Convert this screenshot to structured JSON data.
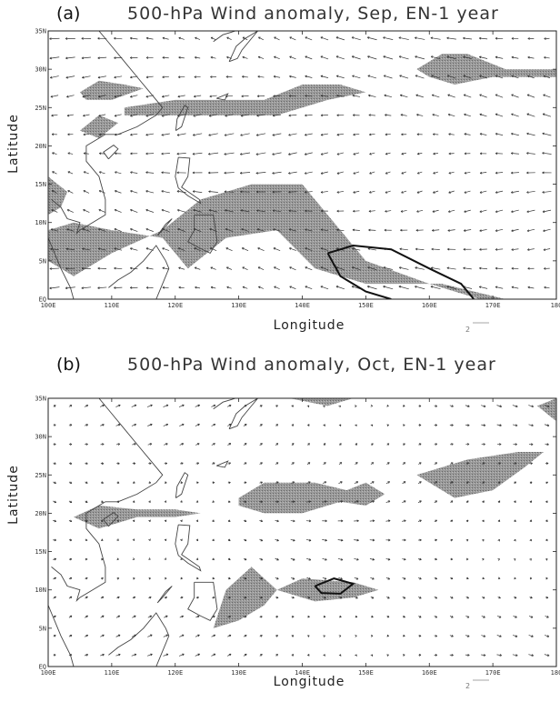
{
  "figure": {
    "panels": [
      {
        "letter": "(a)",
        "title": "500-hPa Wind anomaly, Sep, EN-1 year",
        "xlabel": "Longitude",
        "ylabel": "Latitude",
        "ref_vector_label": "2",
        "lon_ticks": [
          "100E",
          "110E",
          "120E",
          "130E",
          "140E",
          "150E",
          "160E",
          "170E",
          "180"
        ],
        "lat_ticks": [
          "EQ",
          "5N",
          "10N",
          "15N",
          "20N",
          "25N",
          "30N",
          "35N"
        ],
        "wind": {
          "u_base": -1.6,
          "v_base": 0.1,
          "u_amp": 0.6,
          "v_amp": 0.5,
          "phase": 0.0
        },
        "shaded_regions": [
          [
            [
              100,
              5
            ],
            [
              104,
              3
            ],
            [
              110,
              6
            ],
            [
              118,
              9
            ],
            [
              124,
              13
            ],
            [
              132,
              15
            ],
            [
              140,
              15
            ],
            [
              145,
              10
            ],
            [
              150,
              5
            ],
            [
              160,
              2
            ],
            [
              168,
              0
            ],
            [
              172,
              0
            ],
            [
              162,
              2
            ],
            [
              150,
              2
            ],
            [
              142,
              4
            ],
            [
              136,
              9
            ],
            [
              128,
              8
            ],
            [
              122,
              4
            ],
            [
              118,
              8
            ],
            [
              110,
              9
            ],
            [
              104,
              10
            ],
            [
              100,
              9
            ]
          ],
          [
            [
              100,
              11
            ],
            [
              102,
              12
            ],
            [
              103,
              14
            ],
            [
              100,
              16
            ]
          ],
          [
            [
              105,
              27
            ],
            [
              108,
              28.5
            ],
            [
              112,
              28
            ],
            [
              115,
              27.5
            ],
            [
              110,
              26
            ],
            [
              106,
              26
            ]
          ],
          [
            [
              112,
              25
            ],
            [
              120,
              26
            ],
            [
              128,
              26
            ],
            [
              134,
              26
            ],
            [
              140,
              28
            ],
            [
              146,
              28
            ],
            [
              150,
              27
            ],
            [
              144,
              26
            ],
            [
              136,
              24
            ],
            [
              126,
              24
            ],
            [
              118,
              24
            ],
            [
              112,
              24
            ]
          ],
          [
            [
              105,
              22
            ],
            [
              108,
              24
            ],
            [
              111,
              23
            ],
            [
              108,
              21
            ]
          ],
          [
            [
              158,
              30
            ],
            [
              162,
              32
            ],
            [
              166,
              32
            ],
            [
              172,
              30
            ],
            [
              180,
              30
            ],
            [
              180,
              29
            ],
            [
              170,
              29
            ],
            [
              164,
              28
            ],
            [
              160,
              29
            ]
          ]
        ],
        "contours": [
          [
            [
              144,
              6
            ],
            [
              148,
              7
            ],
            [
              154,
              6.5
            ],
            [
              160,
              4
            ],
            [
              165,
              2
            ],
            [
              167,
              0
            ]
          ],
          [
            [
              144,
              6
            ],
            [
              146,
              3
            ],
            [
              150,
              1
            ],
            [
              154,
              0
            ]
          ]
        ]
      },
      {
        "letter": "(b)",
        "title": "500-hPa Wind anomaly, Oct, EN-1 year",
        "xlabel": "Longitude",
        "ylabel": "Latitude",
        "ref_vector_label": "2",
        "lon_ticks": [
          "100E",
          "110E",
          "120E",
          "130E",
          "140E",
          "150E",
          "160E",
          "170E",
          "180"
        ],
        "lat_ticks": [
          "EQ",
          "5N",
          "10N",
          "15N",
          "20N",
          "25N",
          "30N",
          "35N"
        ],
        "wind": {
          "u_base": 0.6,
          "v_base": 0.05,
          "u_amp": 0.5,
          "v_amp": 0.4,
          "phase": 1.2
        },
        "shaded_regions": [
          [
            [
              104,
              19.5
            ],
            [
              108,
              21
            ],
            [
              114,
              20.5
            ],
            [
              120,
              20.5
            ],
            [
              124,
              20
            ],
            [
              120,
              19.5
            ],
            [
              114,
              19.5
            ],
            [
              108,
              18
            ]
          ],
          [
            [
              130,
              22
            ],
            [
              134,
              24
            ],
            [
              142,
              24
            ],
            [
              147,
              23
            ],
            [
              150,
              24
            ],
            [
              153,
              22.5
            ],
            [
              150,
              21
            ],
            [
              146,
              21.5
            ],
            [
              140,
              20
            ],
            [
              134,
              20
            ],
            [
              130,
              21
            ]
          ],
          [
            [
              158,
              25
            ],
            [
              166,
              27
            ],
            [
              174,
              28
            ],
            [
              178,
              28
            ],
            [
              175,
              26
            ],
            [
              170,
              23
            ],
            [
              164,
              22
            ],
            [
              160,
              24
            ]
          ],
          [
            [
              126,
              5
            ],
            [
              128,
              10
            ],
            [
              132,
              13
            ],
            [
              136,
              10
            ],
            [
              134,
              8
            ],
            [
              130,
              6
            ]
          ],
          [
            [
              136,
              10
            ],
            [
              140,
              11.5
            ],
            [
              148,
              11
            ],
            [
              152,
              10
            ],
            [
              148,
              9
            ],
            [
              142,
              8.5
            ]
          ],
          [
            [
              138,
              35
            ],
            [
              144,
              34
            ],
            [
              148,
              35
            ]
          ],
          [
            [
              177,
              34
            ],
            [
              180,
              35
            ],
            [
              180,
              32
            ]
          ]
        ],
        "contours": [
          [
            [
              142,
              10.5
            ],
            [
              145,
              11.5
            ],
            [
              148,
              10.8
            ],
            [
              146,
              9.5
            ],
            [
              143,
              9.6
            ],
            [
              142,
              10.5
            ]
          ]
        ]
      }
    ]
  }
}
